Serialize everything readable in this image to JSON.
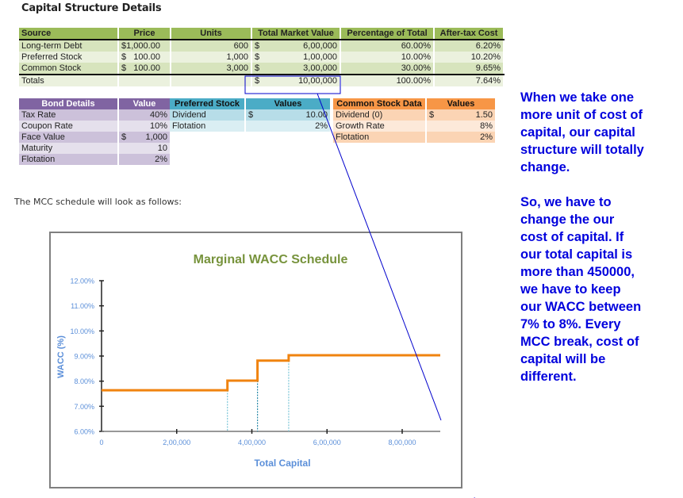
{
  "page_title": "Capital Structure Details",
  "capital_table": {
    "headers": [
      "Source",
      "Price",
      "Units",
      "Total Market Value",
      "Percentage of Total",
      "After-tax Cost"
    ],
    "rows": [
      {
        "source": "Long-term Debt",
        "price": "$1,000.00",
        "units": "600",
        "tmv_cur": "$",
        "tmv": "6,00,000",
        "pct": "60.00%",
        "cost": "6.20%"
      },
      {
        "source": "Preferred Stock",
        "price": "$   100.00",
        "units": "1,000",
        "tmv_cur": "$",
        "tmv": "1,00,000",
        "pct": "10.00%",
        "cost": "10.20%"
      },
      {
        "source": "Common Stock",
        "price": "$   100.00",
        "units": "3,000",
        "tmv_cur": "$",
        "tmv": "3,00,000",
        "pct": "30.00%",
        "cost": "9.65%"
      }
    ],
    "totals": {
      "label": "Totals",
      "tmv_cur": "$",
      "tmv": "10,00,000",
      "pct": "100.00%",
      "cost": "7.64%"
    }
  },
  "bond_table": {
    "headers": [
      "Bond Details",
      "Value"
    ],
    "rows": [
      {
        "label": "Tax Rate",
        "cur": "",
        "value": "40%"
      },
      {
        "label": "Coupon Rate",
        "cur": "",
        "value": "10%"
      },
      {
        "label": "Face Value",
        "cur": "$",
        "value": "1,000"
      },
      {
        "label": "Maturity",
        "cur": "",
        "value": "10"
      },
      {
        "label": "Flotation",
        "cur": "",
        "value": "2%"
      }
    ]
  },
  "preferred_table": {
    "headers": [
      "Preferred Stock",
      "Values"
    ],
    "rows": [
      {
        "label": "Dividend",
        "cur": "$",
        "value": "10.00"
      },
      {
        "label": "Flotation",
        "cur": "",
        "value": "2%"
      }
    ]
  },
  "common_table": {
    "headers": [
      "Common Stock Data",
      "Values"
    ],
    "rows": [
      {
        "label": "Dividend (0)",
        "cur": "$",
        "value": "1.50"
      },
      {
        "label": "Growth Rate",
        "cur": "",
        "value": "8%"
      },
      {
        "label": "Flotation",
        "cur": "",
        "value": "2%"
      }
    ]
  },
  "intro_text": "The MCC schedule will look as follows:",
  "annotation": {
    "paragraph1": [
      "When we take one",
      "more unit of cost of",
      "capital, our capital",
      "structure will totally",
      "change."
    ],
    "paragraph2": [
      "So, we have to",
      "change the our",
      "cost of capital. If",
      "our total capital is",
      "more than 450000,",
      "we have to keep",
      "our WACC between",
      "7% to 8%. Every",
      "MCC break, cost of",
      "capital will be",
      "different."
    ],
    "color": "#0000dd"
  },
  "chart_data": {
    "type": "line",
    "title": "Marginal WACC Schedule",
    "xlabel": "Total Capital",
    "ylabel": "WACC (%)",
    "x_ticks": [
      "0",
      "2,00,000",
      "4,00,000",
      "6,00,000",
      "8,00,000"
    ],
    "y_ticks": [
      "6.00%",
      "7.00%",
      "8.00%",
      "9.00%",
      "10.00%",
      "11.00%",
      "12.00%"
    ],
    "xlim": [
      0,
      900000
    ],
    "ylim": [
      6,
      12
    ],
    "step": true,
    "x": [
      0,
      335000,
      335000,
      415000,
      415000,
      498000,
      498000,
      900000
    ],
    "values": [
      7.64,
      7.64,
      8.02,
      8.02,
      8.82,
      8.82,
      9.03,
      9.03
    ],
    "breakpoints": [
      335000,
      415000,
      498000
    ],
    "line_color": "#f0830f",
    "title_color": "#77933c",
    "axis_text_color": "#5b8fd9",
    "grid": false,
    "legend": "none"
  }
}
